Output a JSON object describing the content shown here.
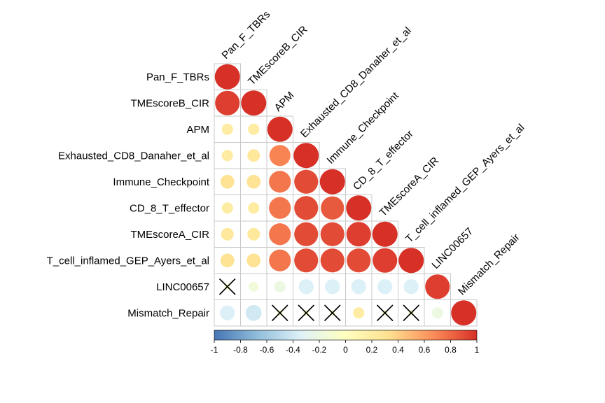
{
  "chart_data": {
    "type": "heatmap",
    "subtype": "correlation-lower-triangle",
    "variables": [
      "Pan_F_TBRs",
      "TMEscoreB_CIR",
      "APM",
      "Exhausted_CD8_Danaher_et_al",
      "Immune_Checkpoint",
      "CD_8_T_effector",
      "TMEscoreA_CIR",
      "T_cell_inflamed_GEP_Ayers_et_al",
      "LINC00657",
      "Mismatch_Repair"
    ],
    "matrix": [
      [
        1.0
      ],
      [
        0.95,
        1.0
      ],
      [
        0.2,
        0.2,
        1.0
      ],
      [
        0.2,
        0.25,
        0.7,
        1.0
      ],
      [
        0.3,
        0.3,
        0.75,
        0.9,
        1.0
      ],
      [
        0.2,
        0.2,
        0.75,
        0.9,
        0.85,
        1.0
      ],
      [
        0.25,
        0.25,
        0.75,
        0.9,
        0.9,
        0.95,
        1.0
      ],
      [
        0.3,
        0.3,
        0.75,
        0.9,
        0.9,
        0.9,
        0.95,
        1.0
      ],
      [
        -0.05,
        -0.15,
        -0.2,
        -0.35,
        -0.35,
        -0.35,
        -0.35,
        -0.35,
        0.95
      ],
      [
        -0.35,
        -0.4,
        -0.05,
        -0.05,
        -0.05,
        0.2,
        -0.05,
        -0.05,
        -0.2,
        1.0
      ]
    ],
    "insignificant_marked": [
      [
        8,
        0
      ],
      [
        9,
        2
      ],
      [
        9,
        3
      ],
      [
        9,
        4
      ],
      [
        9,
        6
      ],
      [
        9,
        7
      ]
    ],
    "colorbar": {
      "range": [
        -1,
        1
      ],
      "ticks": [
        "-1",
        "-0.8",
        "-0.6",
        "-0.4",
        "-0.2",
        "0",
        "0.2",
        "0.4",
        "0.6",
        "0.8",
        "1"
      ],
      "colors": [
        "#4575b4",
        "#91bfdb",
        "#e0f3f8",
        "#ffffbf",
        "#fee090",
        "#fc8d59",
        "#d73027"
      ],
      "mid_colors": [
        "#92ABA7",
        "#C8D2B6",
        "#FCE8A8",
        "#F5C083",
        "#E8896A"
      ]
    },
    "grid": true,
    "legend_position": "bottom"
  }
}
